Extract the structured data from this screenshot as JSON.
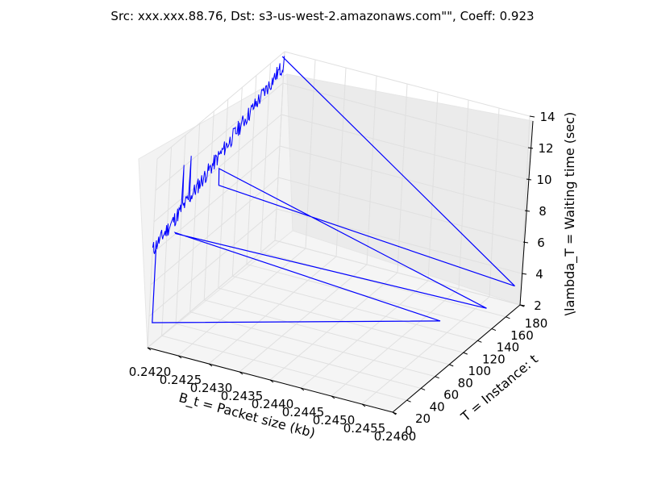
{
  "chart_data": {
    "type": "line",
    "title": "Src: xxx.xxx.88.76, Dst: s3-us-west-2.amazonaws.com\"\", Coeff: 0.923",
    "xlabel": "B_t = Packet size (kb)",
    "ylabel": "T = Instance: t",
    "zlabel": "\\lambda_T = Waiting time (sec)",
    "xlim": [
      0.242,
      0.246
    ],
    "ylim": [
      0,
      180
    ],
    "zlim": [
      2,
      14
    ],
    "x_ticks": [
      "0.2420",
      "0.2425",
      "0.2430",
      "0.2435",
      "0.2440",
      "0.2445",
      "0.2450",
      "0.2455",
      "0.2460"
    ],
    "y_ticks": [
      "0",
      "20",
      "40",
      "60",
      "80",
      "100",
      "120",
      "140",
      "160",
      "180"
    ],
    "z_ticks": [
      "2",
      "4",
      "6",
      "8",
      "10",
      "12",
      "14"
    ],
    "grid": true,
    "line_color": "#0000ff",
    "series": [
      {
        "x": [
          0.242,
          0.242,
          0.242,
          0.2456,
          0.242,
          0.242,
          0.2459,
          0.242,
          0.242,
          0.2459,
          0.242
        ],
        "y": [
          4,
          5,
          5,
          100,
          32,
          33,
          140,
          92,
          93,
          180,
          177
        ],
        "z": [
          8.1,
          8.0,
          3.4,
          3.6,
          8.1,
          8.0,
          3.2,
          9.9,
          8.8,
          3.1,
          13.8
        ]
      }
    ]
  }
}
